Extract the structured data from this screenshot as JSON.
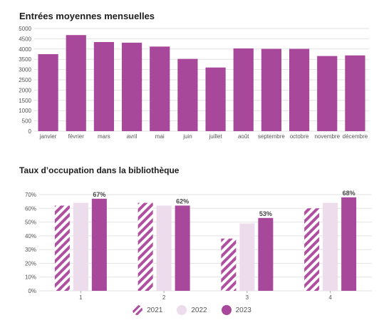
{
  "chart_data": [
    {
      "type": "bar",
      "title": "Entrées moyennes mensuelles",
      "categories": [
        "janvier",
        "février",
        "mars",
        "avril",
        "mai",
        "juin",
        "juillet",
        "août",
        "septembre",
        "octobre",
        "novembre",
        "décembre"
      ],
      "values": [
        3750,
        4680,
        4340,
        4310,
        4120,
        3520,
        3100,
        4030,
        4010,
        4010,
        3660,
        3690
      ],
      "ylim": [
        0,
        5000
      ],
      "yticks": [
        0,
        500,
        1000,
        1500,
        2000,
        2500,
        3000,
        3500,
        4000,
        4500,
        5000
      ],
      "grid": true,
      "color": "#a8489a"
    },
    {
      "type": "bar",
      "title": "Taux d’occupation dans la bibliothèque",
      "categories": [
        "1",
        "2",
        "3",
        "4"
      ],
      "series": [
        {
          "name": "2021",
          "values": [
            62,
            64,
            38,
            60
          ],
          "color": "#b04fa0",
          "pattern": "hatch"
        },
        {
          "name": "2022",
          "values": [
            64,
            62,
            49,
            64
          ],
          "color": "#ecdcec"
        },
        {
          "name": "2023",
          "values": [
            67,
            62,
            53,
            68
          ],
          "color": "#a8489a"
        }
      ],
      "data_labels": {
        "2023": [
          "67%",
          "62%",
          "53%",
          "68%"
        ]
      },
      "yticks": [
        "0%",
        "10%",
        "20%",
        "30%",
        "40%",
        "50%",
        "60%",
        "70%"
      ],
      "ylim": [
        0,
        70
      ],
      "grid": true,
      "legend": "bottom"
    }
  ]
}
